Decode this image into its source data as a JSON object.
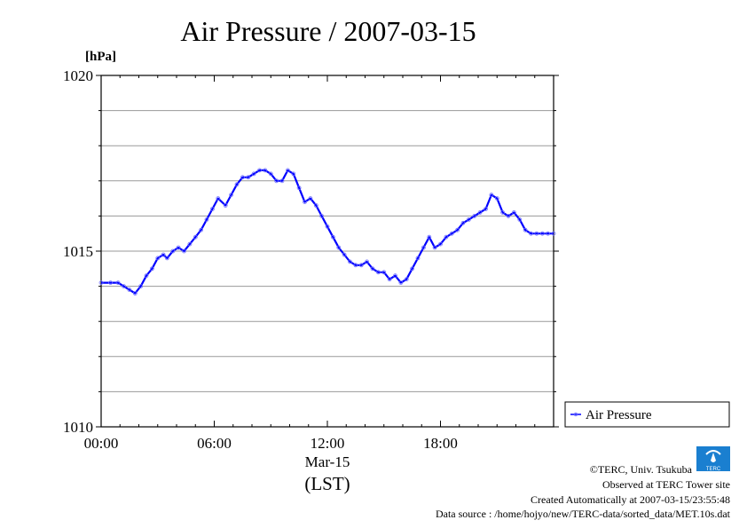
{
  "chart_data": {
    "type": "line",
    "title": "Air Pressure / 2007-03-15",
    "unit_label": "[hPa]",
    "ylim": [
      1010,
      1020
    ],
    "y_ticks": [
      1010,
      1015,
      1020
    ],
    "y_tick_labels": [
      "1010",
      "1015",
      "1020"
    ],
    "xlim": [
      0,
      24
    ],
    "x_ticks": [
      0,
      6,
      12,
      18
    ],
    "x_tick_labels": [
      "00:00",
      "06:00",
      "12:00",
      "18:00"
    ],
    "date_label": "Mar-15",
    "xlabel": "(LST)",
    "grid": true,
    "legend_position": "right",
    "series": [
      {
        "name": "Air Pressure",
        "color": "#0000ff",
        "marker_color": "#6e6eff",
        "x": [
          0,
          0.5,
          0.9,
          1.2,
          1.5,
          1.8,
          2.1,
          2.4,
          2.7,
          3.0,
          3.3,
          3.5,
          3.8,
          4.1,
          4.4,
          4.7,
          5.0,
          5.3,
          5.6,
          5.9,
          6.2,
          6.6,
          6.9,
          7.2,
          7.5,
          7.8,
          8.1,
          8.4,
          8.7,
          9.0,
          9.3,
          9.6,
          9.9,
          10.2,
          10.5,
          10.8,
          11.1,
          11.4,
          11.7,
          12.0,
          12.3,
          12.6,
          12.9,
          13.2,
          13.5,
          13.8,
          14.1,
          14.4,
          14.7,
          15.0,
          15.3,
          15.6,
          15.9,
          16.2,
          16.5,
          16.8,
          17.1,
          17.4,
          17.7,
          18.0,
          18.3,
          18.6,
          18.9,
          19.2,
          19.5,
          19.8,
          20.1,
          20.4,
          20.7,
          21.0,
          21.3,
          21.6,
          21.9,
          22.2,
          22.5,
          22.8,
          23.1,
          23.4,
          23.7,
          24.0
        ],
        "values": [
          1014.1,
          1014.1,
          1014.1,
          1014.0,
          1013.9,
          1013.8,
          1014.0,
          1014.3,
          1014.5,
          1014.8,
          1014.9,
          1014.8,
          1015.0,
          1015.1,
          1015.0,
          1015.2,
          1015.4,
          1015.6,
          1015.9,
          1016.2,
          1016.5,
          1016.3,
          1016.6,
          1016.9,
          1017.1,
          1017.1,
          1017.2,
          1017.3,
          1017.3,
          1017.2,
          1017.0,
          1017.0,
          1017.3,
          1017.2,
          1016.8,
          1016.4,
          1016.5,
          1016.3,
          1016.0,
          1015.7,
          1015.4,
          1015.1,
          1014.9,
          1014.7,
          1014.6,
          1014.6,
          1014.7,
          1014.5,
          1014.4,
          1014.4,
          1014.2,
          1014.3,
          1014.1,
          1014.2,
          1014.5,
          1014.8,
          1015.1,
          1015.4,
          1015.1,
          1015.2,
          1015.4,
          1015.5,
          1015.6,
          1015.8,
          1015.9,
          1016.0,
          1016.1,
          1016.2,
          1016.6,
          1016.5,
          1016.1,
          1016.0,
          1016.1,
          1015.9,
          1015.6,
          1015.5,
          1015.5,
          1015.5,
          1015.5,
          1015.5
        ]
      }
    ]
  },
  "credits": {
    "logo_text": "TERC",
    "line1": "©TERC, Univ. Tsukuba",
    "line2": "Observed at TERC Tower site",
    "line3": "Created Automatically at 2007-03-15/23:55:48",
    "line4": "Data source : /home/hojyo/new/TERC-data/sorted_data/MET.10s.dat"
  }
}
